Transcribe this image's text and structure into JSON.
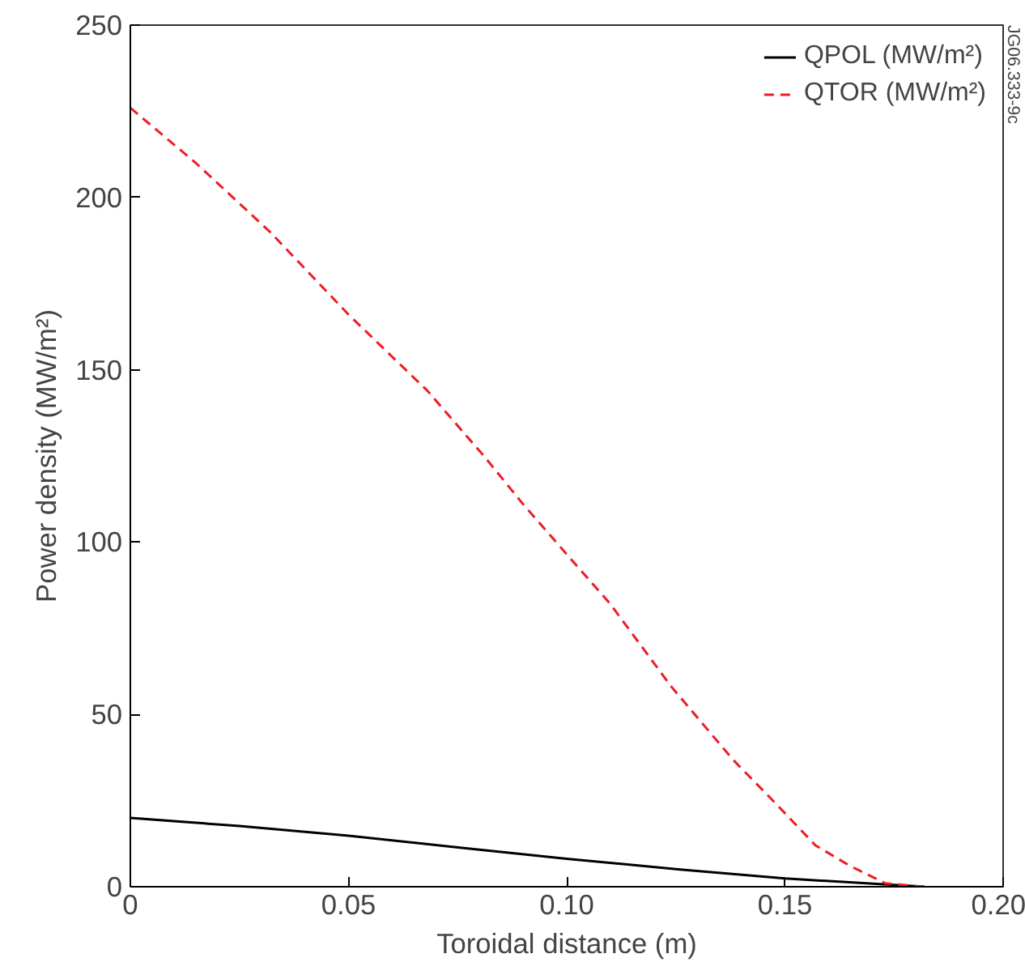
{
  "chart_data": {
    "type": "line",
    "xlabel": "Toroidal distance (m)",
    "ylabel": "Power density (MW/m²)",
    "xlim": [
      0,
      0.2
    ],
    "ylim": [
      0,
      250
    ],
    "xticks": [
      0,
      {
        "value": 0.05,
        "label": "0.05"
      },
      {
        "value": 0.1,
        "label": "0.10"
      },
      {
        "value": 0.15,
        "label": "0.15"
      },
      {
        "value": 0.2,
        "label": "0.20"
      }
    ],
    "yticks": [
      0,
      50,
      100,
      150,
      200,
      250
    ],
    "grid": false,
    "legend": "top right",
    "annotations": [
      "JG06.333-9c"
    ],
    "series": [
      {
        "name": "QPOL (MW/m²)",
        "color": "#000000",
        "line_style": "solid",
        "x": [
          0,
          0.025,
          0.05,
          0.076,
          0.1,
          0.126,
          0.15,
          0.182
        ],
        "values": [
          20,
          17.6,
          14.8,
          11.3,
          8.1,
          5,
          2.4,
          0
        ]
      },
      {
        "name": "QTOR (MW/m²)",
        "color": "#ee1c25",
        "line_style": "dashed",
        "x": [
          0,
          0.015,
          0.032,
          0.05,
          0.068,
          0.081,
          0.09,
          0.101,
          0.11,
          0.124,
          0.138,
          0.148,
          0.157,
          0.165,
          0.173,
          0.182
        ],
        "values": [
          226,
          210,
          190,
          166,
          144,
          125,
          111,
          95,
          82,
          58,
          37,
          24,
          12,
          6,
          1,
          0
        ]
      }
    ]
  }
}
